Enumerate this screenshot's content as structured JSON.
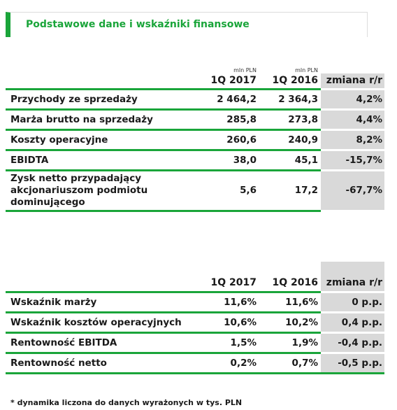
{
  "header": {
    "title": "Podstawowe dane i wskaźniki finansowe"
  },
  "table1": {
    "unit_labels": [
      "mln PLN",
      "mln PLN"
    ],
    "columns": [
      "1Q 2017",
      "1Q 2016",
      "zmiana r/r"
    ],
    "rows": [
      {
        "label": "Przychody ze sprzedaży",
        "q2017": "2 464,2",
        "q2016": "2 364,3",
        "change": "4,2%"
      },
      {
        "label": "Marża brutto na sprzedaży",
        "q2017": "285,8",
        "q2016": "273,8",
        "change": "4,4%"
      },
      {
        "label": "Koszty operacyjne",
        "q2017": "260,6",
        "q2016": "240,9",
        "change": "8,2%"
      },
      {
        "label": "EBIDTA",
        "q2017": "38,0",
        "q2016": "45,1",
        "change": "-15,7%"
      },
      {
        "label": "Zysk netto przypadający akcjonariuszom podmiotu dominującego",
        "q2017": "5,6",
        "q2016": "17,2",
        "change": "-67,7%"
      }
    ]
  },
  "table2": {
    "columns": [
      "1Q 2017",
      "1Q 2016",
      "zmiana r/r"
    ],
    "rows": [
      {
        "label": "Wskaźnik marży",
        "q2017": "11,6%",
        "q2016": "11,6%",
        "change": "0 p.p."
      },
      {
        "label": "Wskaźnik kosztów operacyjnych",
        "q2017": "10,6%",
        "q2016": "10,2%",
        "change": "0,4 p.p."
      },
      {
        "label": "Rentowność EBITDA",
        "q2017": "1,5%",
        "q2016": "1,9%",
        "change": "-0,4 p.p."
      },
      {
        "label": "Rentowność netto",
        "q2017": "0,2%",
        "q2016": "0,7%",
        "change": "-0,5 p.p."
      }
    ]
  },
  "footnote": "* dynamika liczona do danych wyrażonych w tys. PLN"
}
